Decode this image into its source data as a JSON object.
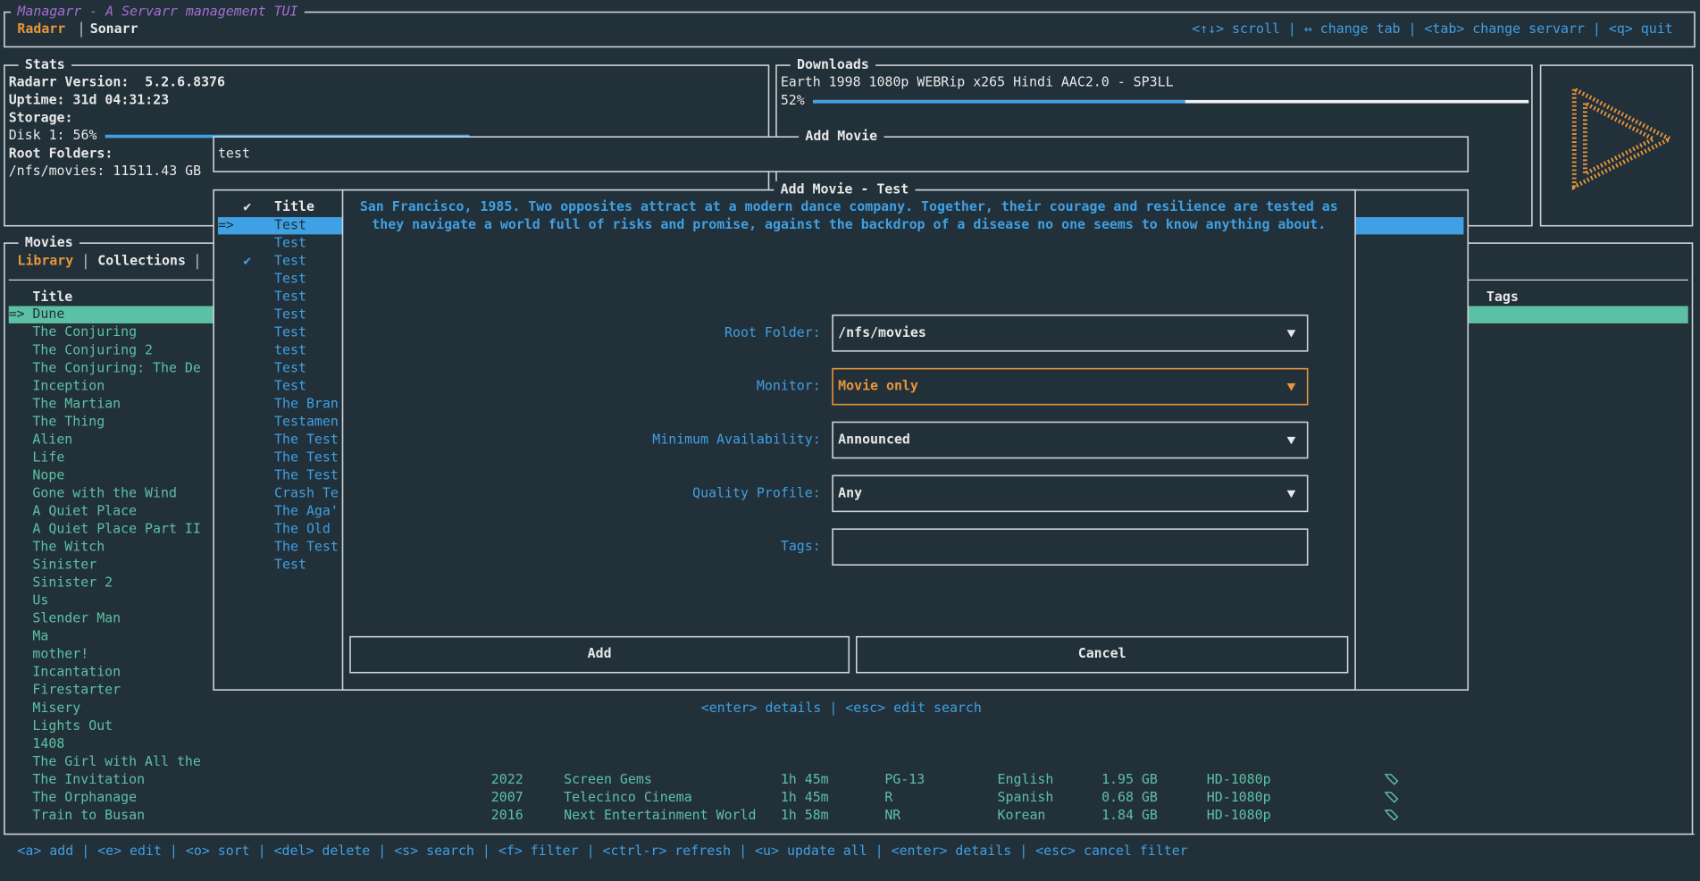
{
  "header": {
    "title": "Managarr - A Servarr management TUI",
    "tabs": [
      "Radarr",
      "Sonarr"
    ],
    "help": "<↑↓> scroll | ↔ change tab | <tab> change servarr | <q> quit"
  },
  "stats": {
    "title": "Stats",
    "lines": [
      "Radarr Version:  5.2.6.8376",
      "Uptime: 31d 04:31:23",
      "Storage:"
    ],
    "disk": {
      "label": "Disk 1: 56%",
      "value": 56
    },
    "root_title": "Root Folders:",
    "root": "/nfs/movies: 11511.43 GB"
  },
  "downloads": {
    "title": "Downloads",
    "item": "Earth 1998 1080p WEBRip x265 Hindi AAC2.0 - SP3LL",
    "progress": {
      "value": 52,
      "label": "52%"
    }
  },
  "movies": {
    "title": "Movies",
    "tabs": [
      "Library",
      "Collections"
    ],
    "column": "Title",
    "tags_column": "Tags",
    "selector": "=>",
    "rows": [
      [
        "Dune"
      ],
      [
        "The Conjuring"
      ],
      [
        "The Conjuring 2"
      ],
      [
        "The Conjuring: The De"
      ],
      [
        "Inception"
      ],
      [
        "The Martian"
      ],
      [
        "The Thing"
      ],
      [
        "Alien"
      ],
      [
        "Life"
      ],
      [
        "Nope"
      ],
      [
        "Gone with the Wind"
      ],
      [
        "A Quiet Place"
      ],
      [
        "A Quiet Place Part II"
      ],
      [
        "The Witch"
      ],
      [
        "Sinister"
      ],
      [
        "Sinister 2"
      ],
      [
        "Us"
      ],
      [
        "Slender Man"
      ],
      [
        "Ma"
      ],
      [
        "mother!"
      ],
      [
        "Incantation"
      ],
      [
        "Firestarter"
      ],
      [
        "Misery"
      ],
      [
        "Lights Out"
      ],
      [
        "1408"
      ],
      [
        "The Girl with All the"
      ],
      [
        "The Invitation",
        "2022",
        "Screen Gems",
        "1h 45m",
        "PG-13",
        "English",
        "1.95 GB",
        "HD-1080p"
      ],
      [
        "The Orphanage",
        "2007",
        "Telecinco Cinema",
        "1h 45m",
        "R",
        "Spanish",
        "0.68 GB",
        "HD-1080p"
      ],
      [
        "Train to Busan",
        "2016",
        "Next Entertainment World",
        "1h 58m",
        "NR",
        "Korean",
        "1.84 GB",
        "HD-1080p"
      ]
    ]
  },
  "add_movie": {
    "title": "Add Movie",
    "search": "test",
    "results_header": [
      "✔",
      "Title"
    ],
    "selector": "=>",
    "check": "✔",
    "results": [
      "Test",
      "Test",
      "Test",
      "Test",
      "Test",
      "Test",
      "Test",
      "test",
      "Test",
      "Test",
      "The Bran",
      "Testamen",
      "The Test",
      "The Test",
      "The Test",
      "Crash Te",
      "The Aga'",
      "The Old",
      "The Test",
      "Test"
    ]
  },
  "modal": {
    "title": "Add Movie - Test",
    "description": [
      "San Francisco, 1985. Two opposites attract at a modern dance company. Together, their courage and resilience are tested as",
      "they navigate a world full of risks and promise, against the backdrop of a disease no one seems to know anything about."
    ],
    "fields": [
      {
        "label": "Root Folder:",
        "value": "/nfs/movies"
      },
      {
        "label": "Monitor:",
        "value": "Movie only"
      },
      {
        "label": "Minimum Availability:",
        "value": "Announced"
      },
      {
        "label": "Quality Profile:",
        "value": "Any"
      },
      {
        "label": "Tags:"
      }
    ],
    "buttons": [
      "Add",
      "Cancel"
    ],
    "hints": "<enter> details | <esc> edit search"
  },
  "footer": "<a> add | <e> edit | <o> sort | <del> delete | <s> search | <f> filter | <ctrl-r> refresh | <u> update all | <enter> details | <esc> cancel filter"
}
